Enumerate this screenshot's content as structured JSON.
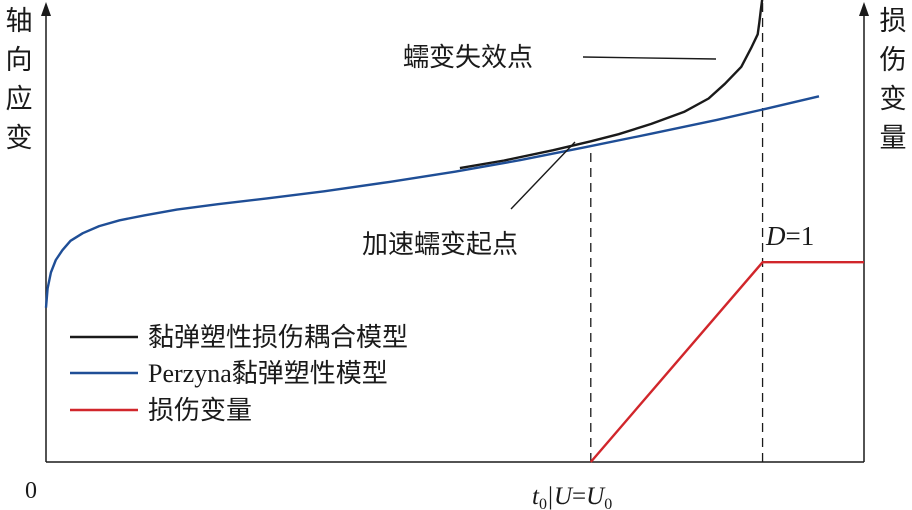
{
  "chart_data": {
    "type": "line",
    "origin_label": "0",
    "xlabel": {
      "t0_base": "t",
      "t0_sub": "0",
      "separator": "|",
      "u_var": "U",
      "equals": "=",
      "u0_base": "U",
      "u0_sub": "0"
    },
    "ylabel_left": [
      "轴",
      "向",
      "应",
      "变"
    ],
    "ylabel_right": [
      "损",
      "伤",
      "变",
      "量"
    ],
    "xlim": [
      0,
      100
    ],
    "ylim": [
      0,
      100
    ],
    "series": [
      {
        "name": "黏弹塑性损伤耦合模型",
        "color": "#1a1a1a",
        "x": [
          50.6,
          56,
          62,
          66.6,
          70,
          74,
          78,
          81,
          83,
          85,
          86.2,
          87,
          87.2,
          87.4,
          87.6
        ],
        "y": [
          65.9,
          67.6,
          69.9,
          71.9,
          73.5,
          75.8,
          78.5,
          81.5,
          84.8,
          88.6,
          92.8,
          95.9,
          98.5,
          101.5,
          104.4
        ]
      },
      {
        "name": "Perzyna黏弹塑性模型",
        "color": "#1f4e96",
        "x": [
          0,
          0.2,
          0.6,
          1.2,
          2,
          3,
          4.5,
          6.5,
          9,
          12,
          16,
          21,
          27,
          34,
          42,
          50,
          58,
          66,
          74,
          82,
          88,
          94.5
        ],
        "y": [
          34.6,
          38.9,
          42.5,
          45.3,
          47.5,
          49.6,
          51.3,
          52.9,
          54.2,
          55.3,
          56.6,
          57.8,
          59.1,
          60.7,
          62.8,
          65.1,
          67.7,
          70.6,
          73.6,
          76.7,
          79.2,
          82.0
        ]
      },
      {
        "name": "损伤变量",
        "color": "#d1262b",
        "x": [
          66.6,
          87.6,
          100
        ],
        "y": [
          0,
          44.8,
          44.8
        ]
      }
    ],
    "legend": {
      "position": "middle-left",
      "entries": [
        "黏弹塑性损伤耦合模型",
        "Perzyna黏弹塑性模型",
        "损伤变量"
      ]
    },
    "annotations": [
      {
        "text": "蠕变失效点"
      },
      {
        "text": "加速蠕变起点"
      },
      {
        "text_var": "D",
        "text_rest": "=1"
      }
    ],
    "reference_lines": [
      {
        "x": 66.6,
        "style": "dashed"
      },
      {
        "x": 87.6,
        "style": "dashed"
      }
    ],
    "grid": false
  }
}
